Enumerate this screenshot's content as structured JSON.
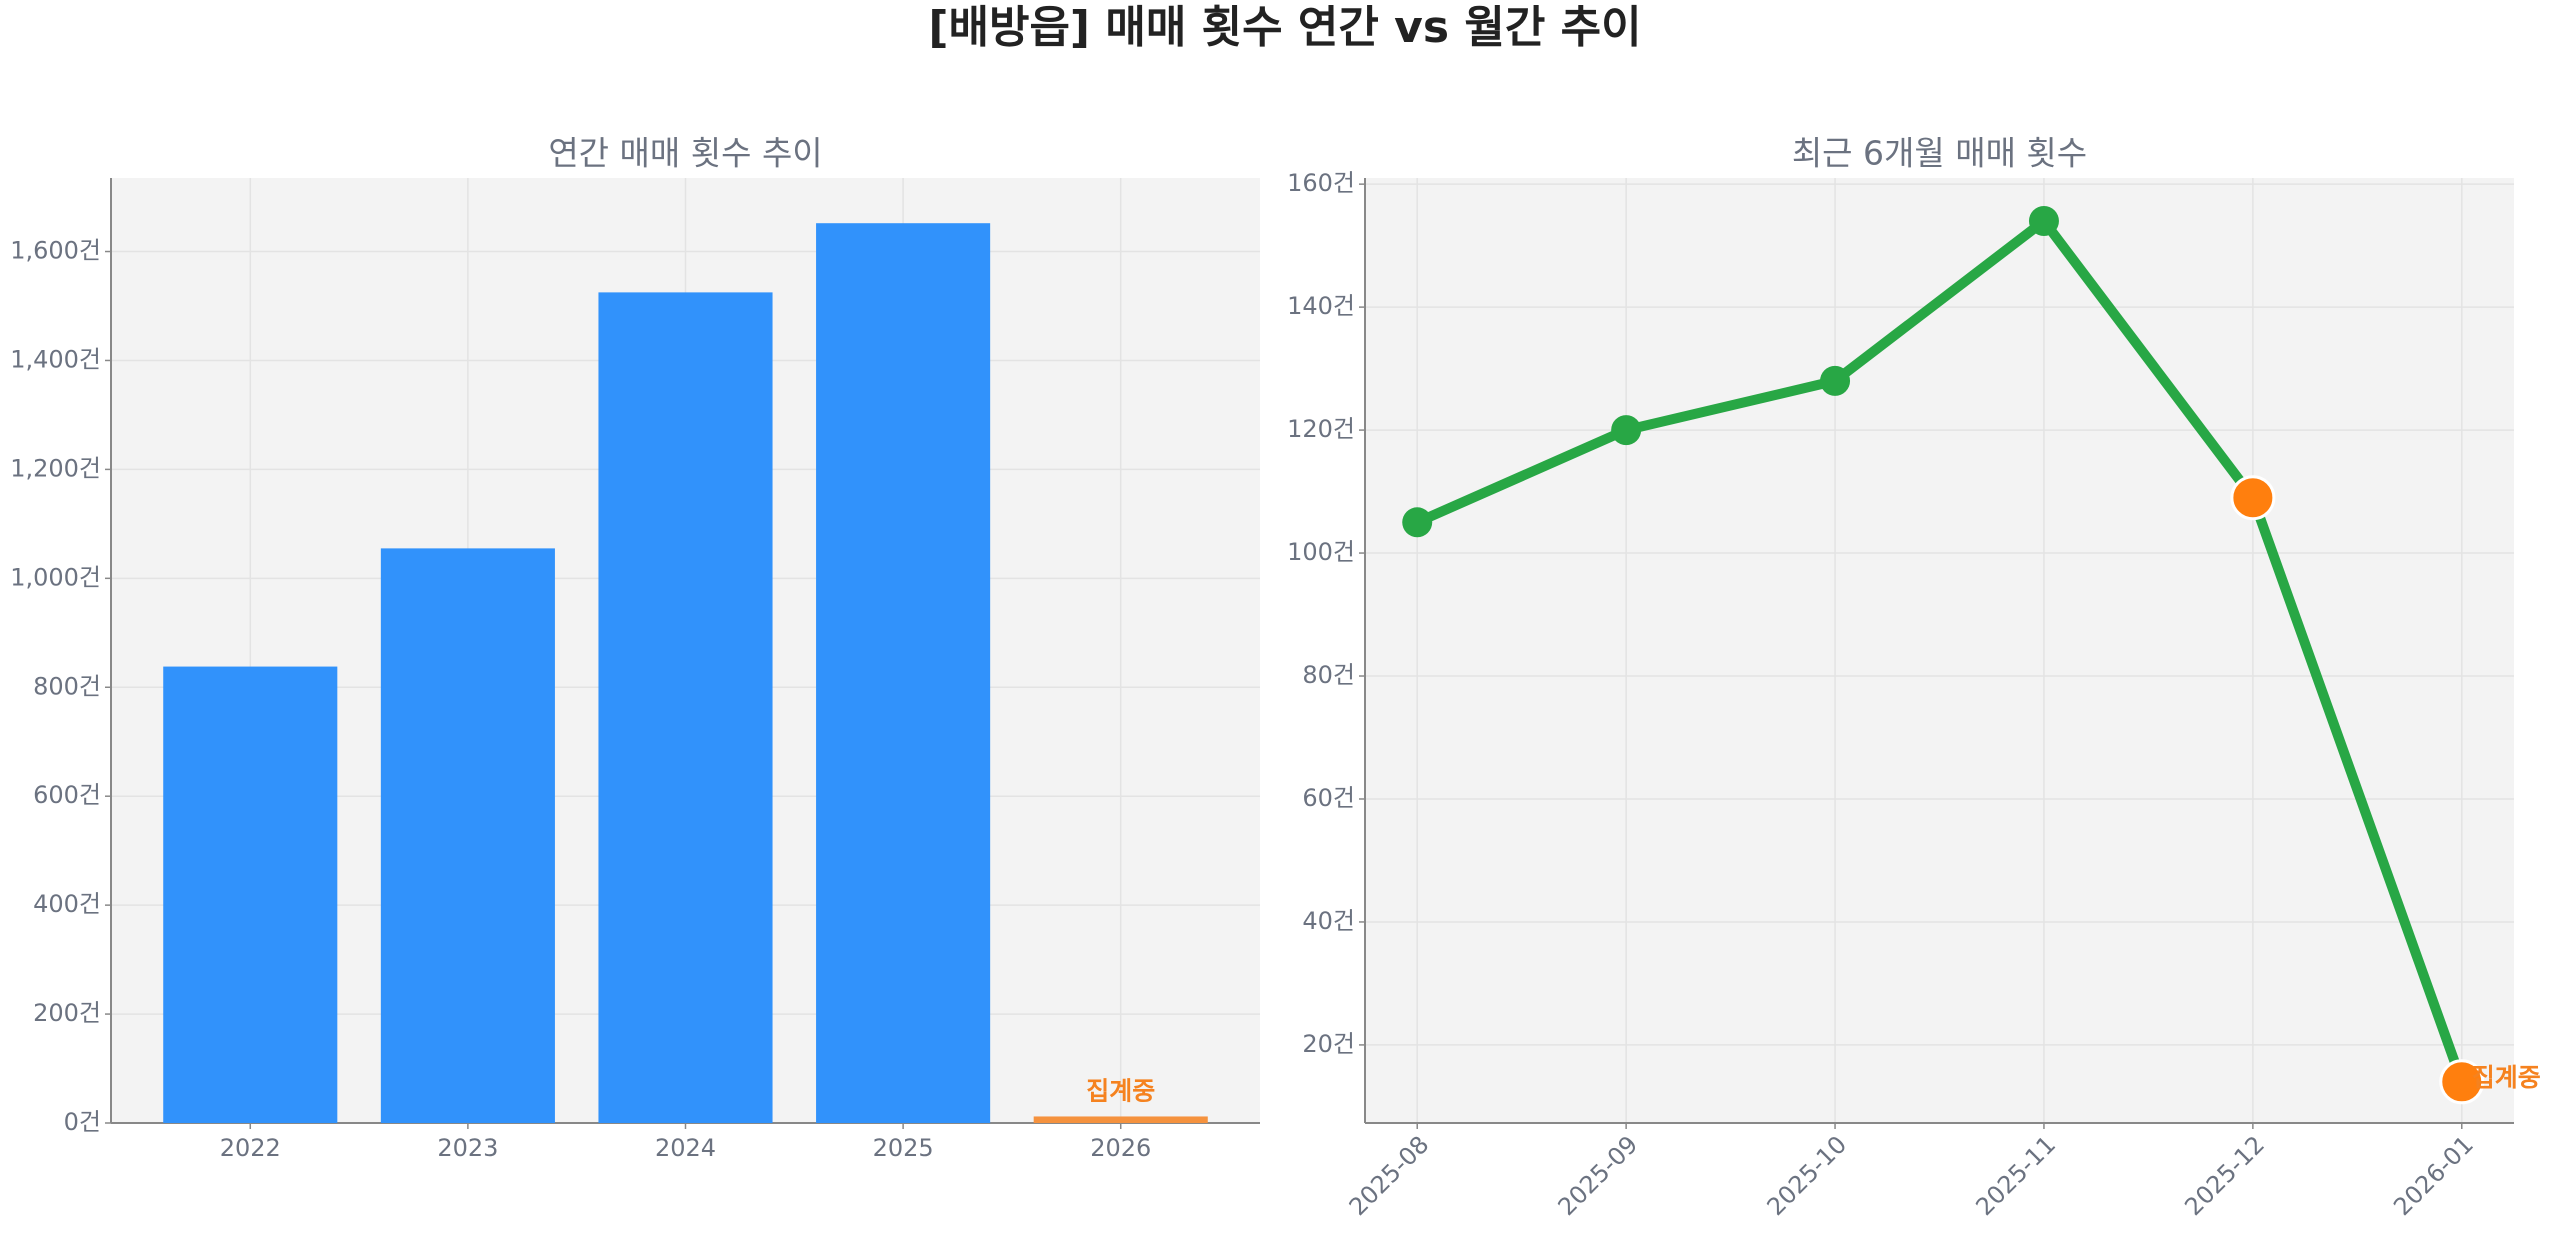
{
  "title": "[배방읍] 매매 횟수 연간 vs 월간 추이",
  "chart_data": [
    {
      "type": "bar",
      "title": "연간 매매 횟수 추이",
      "categories": [
        "2022",
        "2023",
        "2024",
        "2025",
        "2026"
      ],
      "values": [
        838,
        1055,
        1525,
        1652,
        12
      ],
      "colors": [
        "#3192fb",
        "#3192fb",
        "#3192fb",
        "#3192fb",
        "#f5923e"
      ],
      "annotation": "집계중",
      "annotation_color": "#f5821f",
      "ylim": [
        0,
        1735
      ],
      "yticks": [
        {
          "value": 0,
          "label": "0건"
        },
        {
          "value": 200,
          "label": "200건"
        },
        {
          "value": 400,
          "label": "400건"
        },
        {
          "value": 600,
          "label": "600건"
        },
        {
          "value": 800,
          "label": "800건"
        },
        {
          "value": 1000,
          "label": "1,000건"
        },
        {
          "value": 1200,
          "label": "1,200건"
        },
        {
          "value": 1400,
          "label": "1,400건"
        },
        {
          "value": 1600,
          "label": "1,600건"
        }
      ],
      "grid": true
    },
    {
      "type": "line",
      "title": "최근 6개월 매매 횟수",
      "categories": [
        "2025-08",
        "2025-09",
        "2025-10",
        "2025-11",
        "2025-12",
        "2026-01"
      ],
      "values": [
        105,
        120,
        128,
        154,
        109,
        14
      ],
      "color": "#28a745",
      "marker_colors": [
        "#28a745",
        "#28a745",
        "#28a745",
        "#28a745",
        "#ff7f0e",
        "#ff7f0e"
      ],
      "annotation": "집계중",
      "annotation_color": "#f5821f",
      "ylim": [
        7.3,
        161
      ],
      "yticks": [
        {
          "value": 20,
          "label": "20건"
        },
        {
          "value": 40,
          "label": "40건"
        },
        {
          "value": 60,
          "label": "60건"
        },
        {
          "value": 80,
          "label": "80건"
        },
        {
          "value": 100,
          "label": "100건"
        },
        {
          "value": 120,
          "label": "120건"
        },
        {
          "value": 140,
          "label": "140건"
        },
        {
          "value": 160,
          "label": "160건"
        }
      ],
      "grid": true
    }
  ]
}
